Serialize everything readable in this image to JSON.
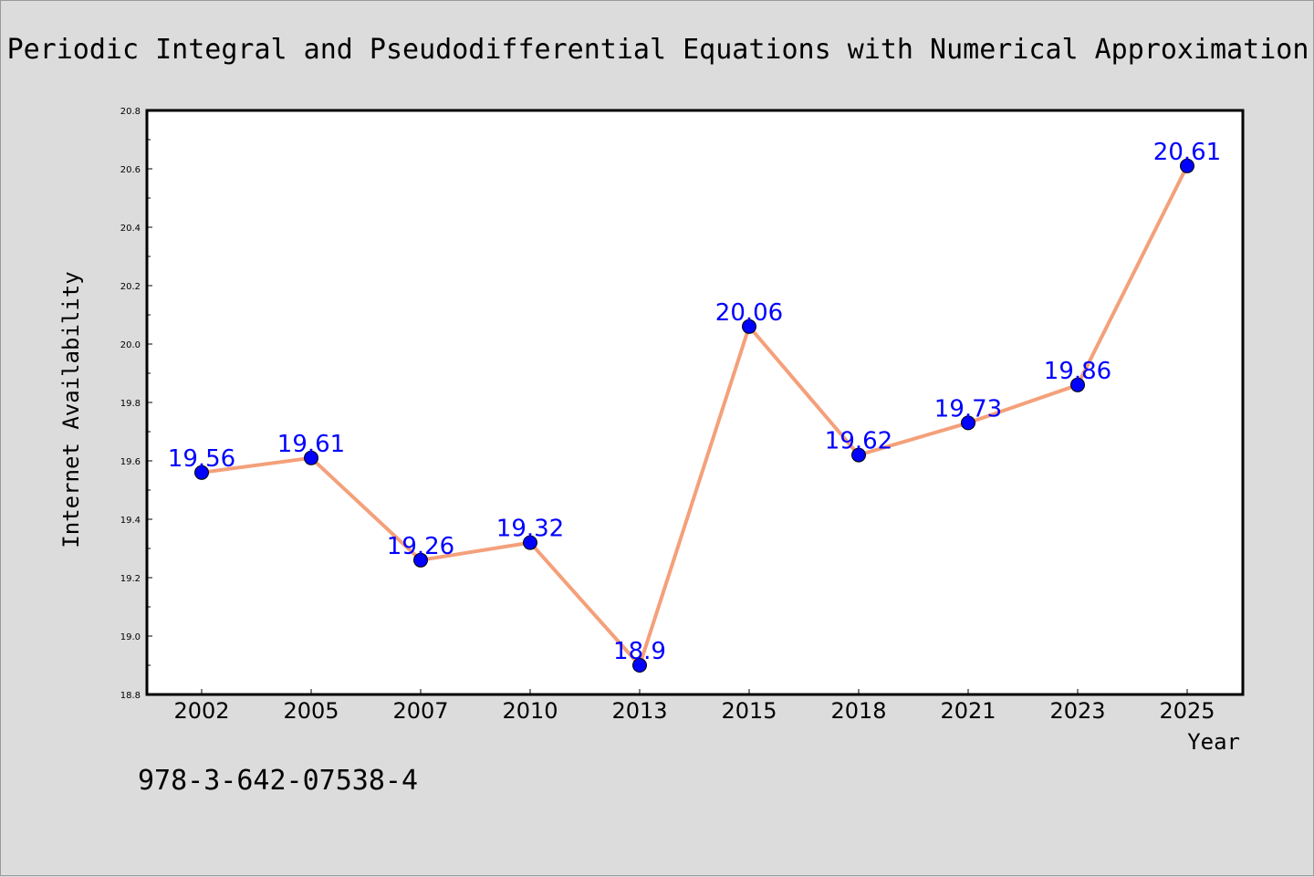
{
  "chart_data": {
    "type": "line",
    "title": "Periodic Integral and Pseudodifferential Equations with Numerical Approximation",
    "xlabel": "Year",
    "ylabel": "Internet Availability",
    "categories": [
      "2002",
      "2005",
      "2007",
      "2010",
      "2013",
      "2015",
      "2018",
      "2021",
      "2023",
      "2025"
    ],
    "series": [
      {
        "values": [
          19.56,
          19.61,
          19.26,
          19.32,
          18.9,
          20.06,
          19.62,
          19.73,
          19.86,
          20.61
        ],
        "value_labels": [
          "19.56",
          "19.61",
          "19.26",
          "19.32",
          "18.9",
          "20.06",
          "19.62",
          "19.73",
          "19.86",
          "20.61"
        ],
        "line_color": "#f4a07a",
        "marker_color": "#0000ff",
        "label_color": "#0000ff"
      }
    ],
    "ylim": [
      18.8,
      20.8
    ],
    "yticks": [
      "18.8",
      "19.0",
      "19.2",
      "19.4",
      "19.6",
      "19.8",
      "20.0",
      "20.2",
      "20.4",
      "20.6",
      "20.8"
    ],
    "grid": false,
    "legend": "none"
  },
  "footer": {
    "isbn": "978-3-642-07538-4"
  },
  "colors": {
    "background": "#dcdcdc",
    "plot_background": "#ffffff"
  }
}
